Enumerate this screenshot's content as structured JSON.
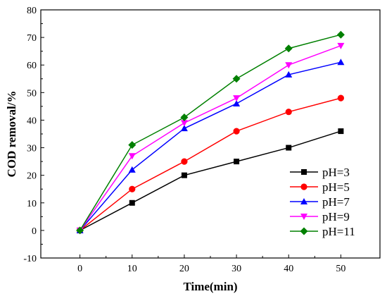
{
  "chart_data": {
    "type": "line",
    "title": "",
    "xlabel": "Time(min)",
    "ylabel": "COD removal/%",
    "xlim": [
      -7.5,
      57.5
    ],
    "ylim": [
      -10,
      80
    ],
    "xticks": [
      0,
      10,
      20,
      30,
      40,
      50
    ],
    "yticks": [
      -10,
      0,
      10,
      20,
      30,
      40,
      50,
      60,
      70,
      80
    ],
    "grid": false,
    "legend_position": "bottom-right",
    "x": [
      0,
      10,
      20,
      30,
      40,
      50
    ],
    "series": [
      {
        "name": "pH=3",
        "color": "#000000",
        "marker": "square",
        "values": [
          0,
          10,
          20,
          25,
          30,
          36
        ]
      },
      {
        "name": "pH=5",
        "color": "#ff0000",
        "marker": "circle",
        "values": [
          0,
          15,
          25,
          36,
          43,
          48
        ]
      },
      {
        "name": "pH=7",
        "color": "#0000ff",
        "marker": "triangle-up",
        "values": [
          0,
          22,
          37,
          46,
          56.5,
          61
        ]
      },
      {
        "name": "pH=9",
        "color": "#ff00ff",
        "marker": "triangle-down",
        "values": [
          0,
          27,
          39,
          48,
          60,
          67
        ]
      },
      {
        "name": "pH=11",
        "color": "#008000",
        "marker": "diamond",
        "values": [
          0,
          31,
          41,
          55,
          66,
          71
        ]
      }
    ]
  }
}
